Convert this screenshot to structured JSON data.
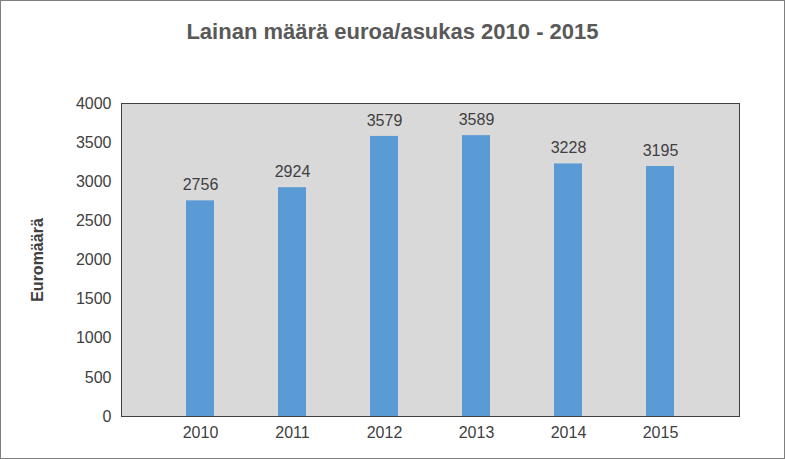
{
  "chart_data": {
    "type": "bar",
    "title": "Lainan määrä euroa/asukas 2010 - 2015",
    "ylabel": "Euromäärä",
    "categories": [
      "2010",
      "2011",
      "2012",
      "2013",
      "2014",
      "2015"
    ],
    "values": [
      2756,
      2924,
      3579,
      3589,
      3228,
      3195
    ],
    "color": "#5b9bd5",
    "ylim": [
      0,
      4000
    ],
    "yticks": [
      0,
      500,
      1000,
      1500,
      2000,
      2500,
      3000,
      3500,
      4000
    ],
    "grid": false,
    "data_labels": true
  }
}
